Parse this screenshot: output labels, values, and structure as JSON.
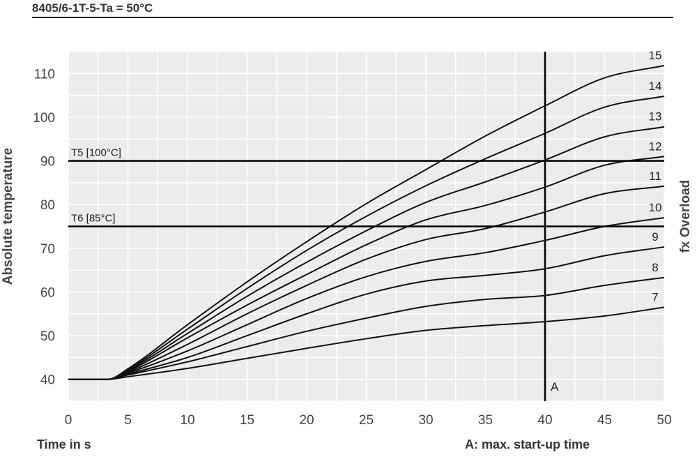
{
  "chart_data": {
    "type": "line",
    "title": "8405/6-1T-5-Ta = 50°C",
    "xlabel": "Time in s",
    "ylabel": "Absolute temperature",
    "y2label": "fx Overload",
    "note": "A: max. start-up time",
    "xlim": [
      0,
      50
    ],
    "ylim": [
      35,
      115
    ],
    "xticks": [
      0,
      5,
      10,
      15,
      20,
      25,
      30,
      35,
      40,
      45,
      50
    ],
    "yticks": [
      40,
      50,
      60,
      70,
      80,
      90,
      100,
      110
    ],
    "grid": true,
    "x": [
      0,
      3.3,
      5,
      10,
      15,
      20,
      25,
      30,
      35,
      40,
      45,
      50
    ],
    "series": [
      {
        "name": "7",
        "values": [
          40,
          40,
          40.6,
          42.5,
          44.8,
          47.1,
          49.3,
          51.2,
          52.3,
          53.2,
          54.5,
          56.5
        ]
      },
      {
        "name": "8",
        "values": [
          40,
          40,
          41.0,
          44.0,
          47.5,
          51.0,
          54.0,
          56.7,
          58.3,
          59.2,
          61.5,
          63.3
        ]
      },
      {
        "name": "9",
        "values": [
          40,
          40,
          41.2,
          45.0,
          50.0,
          55.0,
          59.5,
          62.5,
          63.8,
          65.3,
          68.3,
          70.3
        ]
      },
      {
        "name": "10",
        "values": [
          40,
          40,
          41.4,
          46.5,
          52.5,
          58.5,
          63.5,
          67.0,
          69.0,
          71.8,
          75.0,
          77.0
        ]
      },
      {
        "name": "11",
        "values": [
          40,
          40,
          41.6,
          48.0,
          55.0,
          61.5,
          67.5,
          72.0,
          74.5,
          78.3,
          82.5,
          84.2
        ]
      },
      {
        "name": "12",
        "values": [
          40,
          40,
          41.8,
          49.5,
          57.0,
          64.0,
          70.8,
          76.5,
          79.8,
          84.0,
          89.0,
          91.0
        ]
      },
      {
        "name": "13",
        "values": [
          40,
          40,
          42.0,
          50.5,
          59.0,
          66.8,
          74.0,
          80.5,
          85.2,
          90.2,
          95.5,
          97.8
        ]
      },
      {
        "name": "14",
        "values": [
          40,
          40,
          42.2,
          51.5,
          60.8,
          69.5,
          77.3,
          84.3,
          90.5,
          96.3,
          102.3,
          104.8
        ]
      },
      {
        "name": "15",
        "values": [
          40,
          40,
          42.4,
          52.5,
          62.3,
          71.5,
          80.2,
          88.0,
          95.7,
          102.6,
          109.0,
          111.8
        ]
      }
    ],
    "reference_lines": [
      {
        "label": "T5 [100°C]",
        "y": 90
      },
      {
        "label": "T6 [85°C]",
        "y": 75
      }
    ],
    "vertical_marker": {
      "label": "A",
      "x": 40
    }
  }
}
